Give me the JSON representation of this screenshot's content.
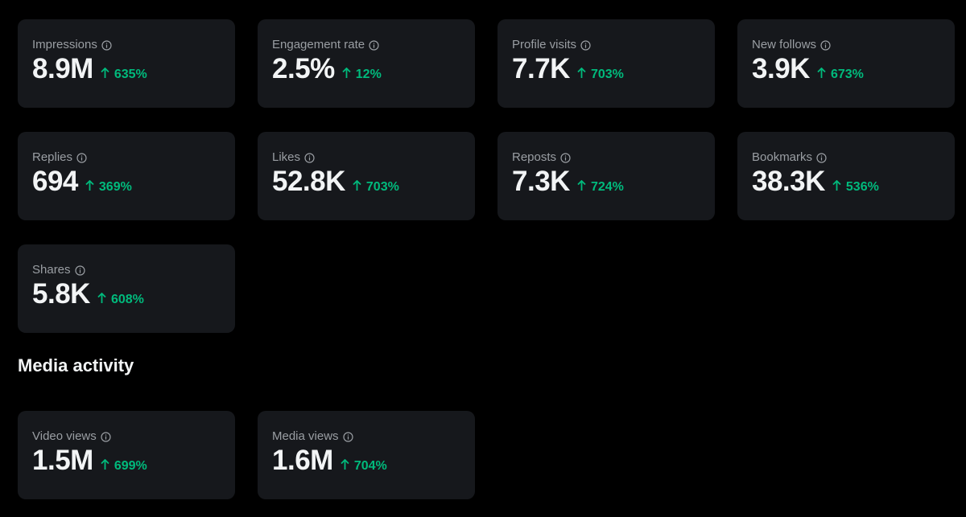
{
  "colors": {
    "background": "#000000",
    "card": "#16181c",
    "label": "#9a9ea3",
    "value": "#f2f4f5",
    "positive": "#00ba7c"
  },
  "metrics": [
    {
      "label": "Impressions",
      "value": "8.9M",
      "change": "635%",
      "icon": "arrow-up-icon"
    },
    {
      "label": "Engagement rate",
      "value": "2.5%",
      "change": "12%",
      "icon": "arrow-up-icon"
    },
    {
      "label": "Profile visits",
      "value": "7.7K",
      "change": "703%",
      "icon": "arrow-up-icon"
    },
    {
      "label": "New follows",
      "value": "3.9K",
      "change": "673%",
      "icon": "arrow-up-icon"
    },
    {
      "label": "Replies",
      "value": "694",
      "change": "369%",
      "icon": "arrow-up-icon"
    },
    {
      "label": "Likes",
      "value": "52.8K",
      "change": "703%",
      "icon": "arrow-up-icon"
    },
    {
      "label": "Reposts",
      "value": "7.3K",
      "change": "724%",
      "icon": "arrow-up-icon"
    },
    {
      "label": "Bookmarks",
      "value": "38.3K",
      "change": "536%",
      "icon": "arrow-up-icon"
    },
    {
      "label": "Shares",
      "value": "5.8K",
      "change": "608%",
      "icon": "arrow-up-icon"
    }
  ],
  "media_section": {
    "title": "Media activity",
    "metrics": [
      {
        "label": "Video views",
        "value": "1.5M",
        "change": "699%",
        "icon": "arrow-up-icon"
      },
      {
        "label": "Media views",
        "value": "1.6M",
        "change": "704%",
        "icon": "arrow-up-icon"
      }
    ]
  }
}
